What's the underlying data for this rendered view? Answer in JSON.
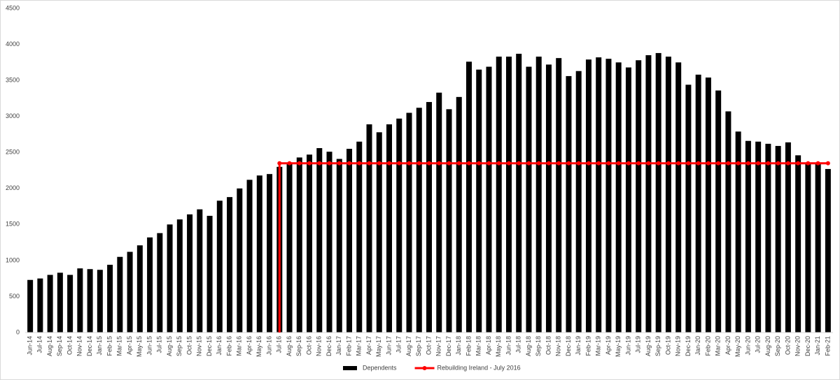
{
  "chart_data": {
    "type": "bar_line",
    "categories": [
      "Jun-14",
      "Jul-14",
      "Aug-14",
      "Sep-14",
      "Oct-14",
      "Nov-14",
      "Dec-14",
      "Jan-15",
      "Feb-15",
      "Mar-15",
      "Apr-15",
      "May-15",
      "Jun-15",
      "Jul-15",
      "Aug-15",
      "Sep-15",
      "Oct-15",
      "Nov-15",
      "Dec-15",
      "Jan-16",
      "Feb-16",
      "Mar-16",
      "Apr-16",
      "May-16",
      "Jun-16",
      "Jul-16",
      "Aug-16",
      "Sep-16",
      "Oct-16",
      "Nov-16",
      "Dec-16",
      "Jan-17",
      "Feb-17",
      "Mar-17",
      "Apr-17",
      "May-17",
      "Jun-17",
      "Jul-17",
      "Aug-17",
      "Sep-17",
      "Oct-17",
      "Nov-17",
      "Dec-17",
      "Jan-18",
      "Feb-18",
      "Mar-18",
      "Apr-18",
      "May-18",
      "Jun-18",
      "Jul-18",
      "Aug-18",
      "Sep-18",
      "Oct-18",
      "Nov-18",
      "Dec-18",
      "Jan-19",
      "Feb-19",
      "Mar-19",
      "Apr-19",
      "May-19",
      "Jun-19",
      "Jul-19",
      "Aug-19",
      "Sep-19",
      "Oct-19",
      "Nov-19",
      "Dec-19",
      "Jan-20",
      "Feb-20",
      "Mar-20",
      "Apr-20",
      "May-20",
      "Jun-20",
      "Jul-20",
      "Aug-20",
      "Sep-20",
      "Oct-20",
      "Nov-20",
      "Dec-20",
      "Jan-21",
      "Feb-21"
    ],
    "series": [
      {
        "name": "Dependents",
        "type": "bar",
        "color": "#000000",
        "values": [
          730,
          750,
          800,
          830,
          800,
          890,
          880,
          870,
          940,
          1050,
          1120,
          1210,
          1320,
          1380,
          1500,
          1570,
          1640,
          1710,
          1620,
          1830,
          1880,
          2000,
          2120,
          2180,
          2200,
          2300,
          2360,
          2430,
          2470,
          2560,
          2510,
          2410,
          2550,
          2650,
          2890,
          2780,
          2890,
          2970,
          3050,
          3120,
          3200,
          3330,
          3100,
          3270,
          3760,
          3650,
          3690,
          3830,
          3830,
          3870,
          3690,
          3830,
          3720,
          3810,
          3560,
          3630,
          3790,
          3820,
          3800,
          3750,
          3680,
          3780,
          3850,
          3880,
          3830,
          3750,
          3440,
          3580,
          3540,
          3360,
          3070,
          2790,
          2660,
          2650,
          2620,
          2590,
          2640,
          2460,
          2340,
          2340,
          2270
        ]
      },
      {
        "name": "Rebuilding Ireland - July 2016",
        "type": "line",
        "color": "#ff0000",
        "drop_to_axis": true,
        "values": [
          null,
          null,
          null,
          null,
          null,
          null,
          null,
          null,
          null,
          null,
          null,
          null,
          null,
          null,
          null,
          null,
          null,
          null,
          null,
          null,
          null,
          null,
          null,
          null,
          null,
          2350,
          2350,
          2350,
          2350,
          2350,
          2350,
          2350,
          2350,
          2350,
          2350,
          2350,
          2350,
          2350,
          2350,
          2350,
          2350,
          2350,
          2350,
          2350,
          2350,
          2350,
          2350,
          2350,
          2350,
          2350,
          2350,
          2350,
          2350,
          2350,
          2350,
          2350,
          2350,
          2350,
          2350,
          2350,
          2350,
          2350,
          2350,
          2350,
          2350,
          2350,
          2350,
          2350,
          2350,
          2350,
          2350,
          2350,
          2350,
          2350,
          2350,
          2350,
          2350,
          2350,
          2350,
          2350,
          2350
        ]
      }
    ],
    "ylim": [
      0,
      4500
    ],
    "yticks": [
      0,
      500,
      1000,
      1500,
      2000,
      2500,
      3000,
      3500,
      4000,
      4500
    ],
    "grid": false,
    "legend": "bottom"
  }
}
